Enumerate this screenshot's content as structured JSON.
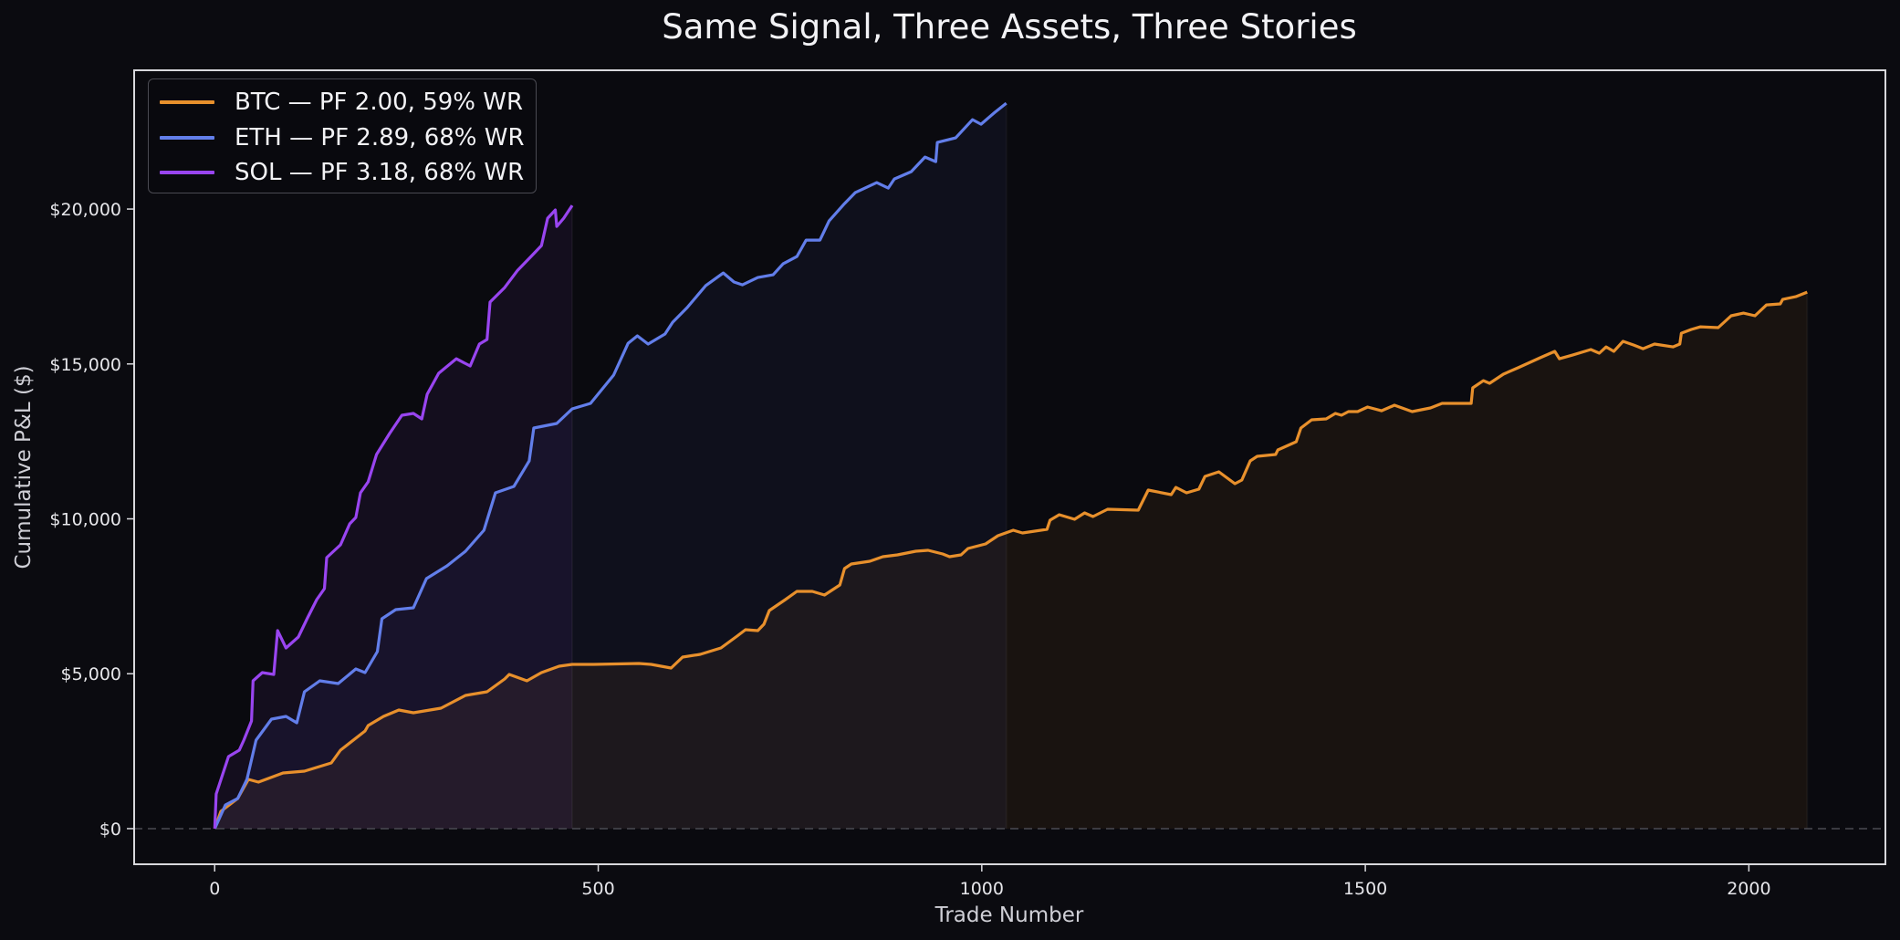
{
  "title": "Same Signal, Three Assets, Three Stories",
  "chart_data": {
    "type": "line",
    "title": "Same Signal, Three Assets, Three Stories",
    "xlabel": "Trade Number",
    "ylabel": "Cumulative P&L ($)",
    "xlim": [
      -105,
      2178
    ],
    "ylim": [
      -1150,
      24480
    ],
    "x_ticks": [
      0,
      500,
      1000,
      1500,
      2000
    ],
    "x_tick_labels": [
      "0",
      "500",
      "1000",
      "1500",
      "2000"
    ],
    "y_ticks": [
      0,
      5000,
      10000,
      15000,
      20000
    ],
    "y_tick_labels": [
      "$0",
      "$5,000",
      "$10,000",
      "$15,000",
      "$20,000"
    ],
    "grid": false,
    "zero_line": "dashed",
    "legend_position": "upper left",
    "series": [
      {
        "name": "BTC — PF 2.00, 59% WR",
        "asset": "BTC",
        "profit_factor": 2.0,
        "win_rate_pct": 59,
        "color": "#E8902C",
        "fill": "rgba(232,144,44,0.07)",
        "final_trade": 2076,
        "final_pnl": 17320,
        "points": [
          [
            0,
            0
          ],
          [
            8,
            560
          ],
          [
            30,
            973
          ],
          [
            44,
            1591
          ],
          [
            57,
            1502
          ],
          [
            89,
            1797
          ],
          [
            117,
            1856
          ],
          [
            152,
            2121
          ],
          [
            164,
            2533
          ],
          [
            196,
            3152
          ],
          [
            200,
            3328
          ],
          [
            220,
            3623
          ],
          [
            240,
            3829
          ],
          [
            259,
            3741
          ],
          [
            295,
            3888
          ],
          [
            327,
            4300
          ],
          [
            355,
            4418
          ],
          [
            378,
            4831
          ],
          [
            384,
            4978
          ],
          [
            407,
            4772
          ],
          [
            426,
            5037
          ],
          [
            449,
            5243
          ],
          [
            466,
            5302
          ],
          [
            494,
            5302
          ],
          [
            553,
            5331
          ],
          [
            569,
            5302
          ],
          [
            595,
            5184
          ],
          [
            610,
            5538
          ],
          [
            633,
            5626
          ],
          [
            660,
            5832
          ],
          [
            681,
            6215
          ],
          [
            692,
            6421
          ],
          [
            708,
            6392
          ],
          [
            716,
            6598
          ],
          [
            723,
            7040
          ],
          [
            744,
            7393
          ],
          [
            759,
            7658
          ],
          [
            779,
            7658
          ],
          [
            795,
            7540
          ],
          [
            815,
            7864
          ],
          [
            821,
            8395
          ],
          [
            830,
            8542
          ],
          [
            854,
            8630
          ],
          [
            871,
            8778
          ],
          [
            890,
            8837
          ],
          [
            914,
            8954
          ],
          [
            930,
            8984
          ],
          [
            949,
            8866
          ],
          [
            958,
            8778
          ],
          [
            973,
            8837
          ],
          [
            982,
            9043
          ],
          [
            1005,
            9190
          ],
          [
            1021,
            9455
          ],
          [
            1041,
            9632
          ],
          [
            1053,
            9543
          ],
          [
            1085,
            9661
          ],
          [
            1089,
            9956
          ],
          [
            1101,
            10133
          ],
          [
            1121,
            9985
          ],
          [
            1134,
            10191
          ],
          [
            1145,
            10074
          ],
          [
            1164,
            10309
          ],
          [
            1204,
            10280
          ],
          [
            1217,
            10928
          ],
          [
            1247,
            10780
          ],
          [
            1253,
            11016
          ],
          [
            1267,
            10839
          ],
          [
            1283,
            10957
          ],
          [
            1291,
            11370
          ],
          [
            1309,
            11517
          ],
          [
            1330,
            11134
          ],
          [
            1339,
            11252
          ],
          [
            1350,
            11870
          ],
          [
            1359,
            12018
          ],
          [
            1383,
            12077
          ],
          [
            1386,
            12224
          ],
          [
            1410,
            12489
          ],
          [
            1416,
            12931
          ],
          [
            1430,
            13196
          ],
          [
            1449,
            13225
          ],
          [
            1461,
            13402
          ],
          [
            1469,
            13343
          ],
          [
            1478,
            13461
          ],
          [
            1490,
            13461
          ],
          [
            1503,
            13608
          ],
          [
            1521,
            13490
          ],
          [
            1538,
            13667
          ],
          [
            1561,
            13461
          ],
          [
            1585,
            13579
          ],
          [
            1600,
            13726
          ],
          [
            1638,
            13726
          ],
          [
            1640,
            14227
          ],
          [
            1654,
            14462
          ],
          [
            1662,
            14374
          ],
          [
            1680,
            14669
          ],
          [
            1699,
            14875
          ],
          [
            1728,
            15199
          ],
          [
            1747,
            15405
          ],
          [
            1753,
            15169
          ],
          [
            1770,
            15287
          ],
          [
            1794,
            15464
          ],
          [
            1805,
            15346
          ],
          [
            1814,
            15552
          ],
          [
            1824,
            15405
          ],
          [
            1836,
            15729
          ],
          [
            1850,
            15611
          ],
          [
            1862,
            15493
          ],
          [
            1877,
            15641
          ],
          [
            1901,
            15552
          ],
          [
            1910,
            15641
          ],
          [
            1912,
            15994
          ],
          [
            1925,
            16112
          ],
          [
            1937,
            16200
          ],
          [
            1960,
            16171
          ],
          [
            1977,
            16554
          ],
          [
            1993,
            16642
          ],
          [
            2008,
            16554
          ],
          [
            2023,
            16907
          ],
          [
            2041,
            16937
          ],
          [
            2044,
            17084
          ],
          [
            2061,
            17172
          ],
          [
            2076,
            17319
          ]
        ]
      },
      {
        "name": "ETH — PF 2.89, 68% WR",
        "asset": "ETH",
        "profit_factor": 2.89,
        "win_rate_pct": 68,
        "color": "#627EEA",
        "fill": "rgba(98,126,234,0.06)",
        "final_trade": 1032,
        "final_pnl": 23420,
        "points": [
          [
            0,
            0
          ],
          [
            14,
            766
          ],
          [
            30,
            973
          ],
          [
            42,
            1591
          ],
          [
            54,
            2857
          ],
          [
            74,
            3535
          ],
          [
            93,
            3623
          ],
          [
            107,
            3417
          ],
          [
            117,
            4418
          ],
          [
            137,
            4772
          ],
          [
            161,
            4683
          ],
          [
            184,
            5155
          ],
          [
            196,
            5037
          ],
          [
            212,
            5714
          ],
          [
            218,
            6775
          ],
          [
            236,
            7069
          ],
          [
            259,
            7128
          ],
          [
            276,
            8071
          ],
          [
            303,
            8483
          ],
          [
            327,
            8954
          ],
          [
            351,
            9632
          ],
          [
            366,
            10839
          ],
          [
            390,
            11046
          ],
          [
            410,
            11870
          ],
          [
            416,
            12931
          ],
          [
            446,
            13078
          ],
          [
            466,
            13549
          ],
          [
            490,
            13726
          ],
          [
            520,
            14639
          ],
          [
            539,
            15670
          ],
          [
            551,
            15906
          ],
          [
            565,
            15641
          ],
          [
            587,
            15965
          ],
          [
            597,
            16347
          ],
          [
            616,
            16819
          ],
          [
            640,
            17526
          ],
          [
            663,
            17938
          ],
          [
            677,
            17644
          ],
          [
            688,
            17555
          ],
          [
            708,
            17791
          ],
          [
            728,
            17879
          ],
          [
            741,
            18233
          ],
          [
            759,
            18468
          ],
          [
            771,
            18998
          ],
          [
            789,
            18998
          ],
          [
            801,
            19617
          ],
          [
            821,
            20177
          ],
          [
            835,
            20530
          ],
          [
            863,
            20854
          ],
          [
            878,
            20678
          ],
          [
            886,
            20972
          ],
          [
            908,
            21208
          ],
          [
            926,
            21679
          ],
          [
            940,
            21532
          ],
          [
            942,
            22150
          ],
          [
            966,
            22297
          ],
          [
            988,
            22886
          ],
          [
            999,
            22739
          ],
          [
            1017,
            23122
          ],
          [
            1032,
            23417
          ]
        ]
      },
      {
        "name": "SOL — PF 3.18, 68% WR",
        "asset": "SOL",
        "profit_factor": 3.18,
        "win_rate_pct": 68,
        "color": "#9945F0",
        "fill": "rgba(153,69,240,0.07)",
        "final_trade": 466,
        "final_pnl": 20120,
        "points": [
          [
            0,
            0
          ],
          [
            2,
            1119
          ],
          [
            18,
            2327
          ],
          [
            32,
            2533
          ],
          [
            38,
            2857
          ],
          [
            48,
            3476
          ],
          [
            50,
            4772
          ],
          [
            62,
            5037
          ],
          [
            77,
            4978
          ],
          [
            82,
            6392
          ],
          [
            93,
            5832
          ],
          [
            109,
            6186
          ],
          [
            121,
            6804
          ],
          [
            133,
            7393
          ],
          [
            143,
            7747
          ],
          [
            146,
            8748
          ],
          [
            164,
            9161
          ],
          [
            176,
            9838
          ],
          [
            184,
            10045
          ],
          [
            190,
            10839
          ],
          [
            200,
            11193
          ],
          [
            211,
            12077
          ],
          [
            228,
            12754
          ],
          [
            244,
            13343
          ],
          [
            259,
            13402
          ],
          [
            270,
            13225
          ],
          [
            277,
            14021
          ],
          [
            292,
            14698
          ],
          [
            315,
            15169
          ],
          [
            333,
            14934
          ],
          [
            345,
            15641
          ],
          [
            355,
            15788
          ],
          [
            359,
            16996
          ],
          [
            378,
            17467
          ],
          [
            395,
            18026
          ],
          [
            410,
            18409
          ],
          [
            426,
            18822
          ],
          [
            434,
            19705
          ],
          [
            444,
            19971
          ],
          [
            446,
            19440
          ],
          [
            455,
            19705
          ],
          [
            466,
            20118
          ]
        ]
      }
    ]
  },
  "legend": {
    "items": [
      {
        "label": "BTC — PF 2.00, 59% WR",
        "color": "#E8902C"
      },
      {
        "label": "ETH — PF 2.89, 68% WR",
        "color": "#627EEA"
      },
      {
        "label": "SOL — PF 3.18, 68% WR",
        "color": "#9945F0"
      }
    ]
  },
  "axes": {
    "x_label": "Trade Number",
    "y_label": "Cumulative P&L ($)"
  }
}
